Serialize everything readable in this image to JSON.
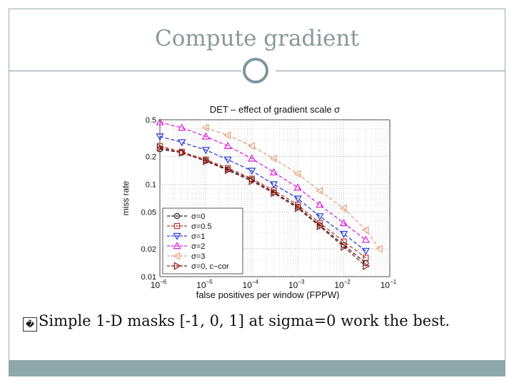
{
  "slide": {
    "title": "Compute gradient",
    "bullet_mark": "�",
    "bullet_text": "Simple 1-D masks [-1, 0, 1] at sigma=0 work the best."
  },
  "colors": {
    "accent": "#8fa8ab",
    "title_gray": "#8b979b"
  },
  "chart_data": {
    "type": "line",
    "title": "DET – effect of gradient scale σ",
    "xlabel": "false positives per window (FPPW)",
    "ylabel": "miss rate",
    "xscale": "log",
    "yscale": "log",
    "xlim": [
      1e-06,
      0.1
    ],
    "ylim": [
      0.01,
      0.5
    ],
    "grid": true,
    "legend_position": "bottom-left",
    "x_ticks": [
      {
        "value": 1e-06,
        "base": "10",
        "exp": "−6"
      },
      {
        "value": 1e-05,
        "base": "10",
        "exp": "−5"
      },
      {
        "value": 0.0001,
        "base": "10",
        "exp": "−4"
      },
      {
        "value": 0.001,
        "base": "10",
        "exp": "−3"
      },
      {
        "value": 0.01,
        "base": "10",
        "exp": "−2"
      },
      {
        "value": 0.1,
        "base": "10",
        "exp": "−1"
      }
    ],
    "y_ticks": [
      {
        "value": 0.5,
        "label": "0.5"
      },
      {
        "value": 0.2,
        "label": "0.2"
      },
      {
        "value": 0.1,
        "label": "0.1"
      },
      {
        "value": 0.05,
        "label": "0.05"
      },
      {
        "value": 0.02,
        "label": "0.02"
      },
      {
        "value": 0.01,
        "label": "0.01"
      }
    ],
    "series": [
      {
        "name": "σ=0",
        "color": "#222222",
        "marker": "circle",
        "x": [
          1e-06,
          3e-06,
          1e-05,
          3e-05,
          0.0001,
          0.0003,
          0.001,
          0.003,
          0.01,
          0.03
        ],
        "y": [
          0.24,
          0.22,
          0.18,
          0.145,
          0.112,
          0.082,
          0.057,
          0.036,
          0.022,
          0.014
        ]
      },
      {
        "name": "σ=0.5",
        "color": "#c0392b",
        "marker": "square",
        "x": [
          1e-06,
          3e-06,
          1e-05,
          3e-05,
          0.0001,
          0.0003,
          0.001,
          0.003,
          0.01,
          0.03
        ],
        "y": [
          0.26,
          0.225,
          0.185,
          0.15,
          0.115,
          0.086,
          0.06,
          0.038,
          0.024,
          0.016
        ]
      },
      {
        "name": "σ=1",
        "color": "#2c3ee0",
        "marker": "triangle-down",
        "x": [
          1e-06,
          3e-06,
          1e-05,
          3e-05,
          0.0001,
          0.0003,
          0.001,
          0.003,
          0.01,
          0.03
        ],
        "y": [
          0.33,
          0.285,
          0.235,
          0.185,
          0.14,
          0.1,
          0.07,
          0.045,
          0.029,
          0.019
        ]
      },
      {
        "name": "σ=2",
        "color": "#e020e0",
        "marker": "triangle-up",
        "x": [
          1e-06,
          3e-06,
          1e-05,
          3e-05,
          0.0001,
          0.0003,
          0.001,
          0.003,
          0.01,
          0.03
        ],
        "y": [
          0.47,
          0.41,
          0.33,
          0.26,
          0.19,
          0.135,
          0.092,
          0.06,
          0.038,
          0.025
        ]
      },
      {
        "name": "σ=3",
        "color": "#e8a080",
        "marker": "triangle-left",
        "x": [
          1e-05,
          3e-05,
          0.0001,
          0.0003,
          0.001,
          0.003,
          0.01,
          0.03,
          0.06
        ],
        "y": [
          0.41,
          0.34,
          0.26,
          0.19,
          0.13,
          0.085,
          0.055,
          0.032,
          0.02
        ]
      },
      {
        "name": "σ=0, c−cor",
        "color": "#8b1a1a",
        "marker": "triangle-right",
        "x": [
          1e-06,
          3e-06,
          1e-05,
          3e-05,
          0.0001,
          0.0003,
          0.001,
          0.003,
          0.01,
          0.03
        ],
        "y": [
          0.25,
          0.22,
          0.178,
          0.142,
          0.108,
          0.08,
          0.055,
          0.035,
          0.021,
          0.013
        ]
      }
    ]
  }
}
